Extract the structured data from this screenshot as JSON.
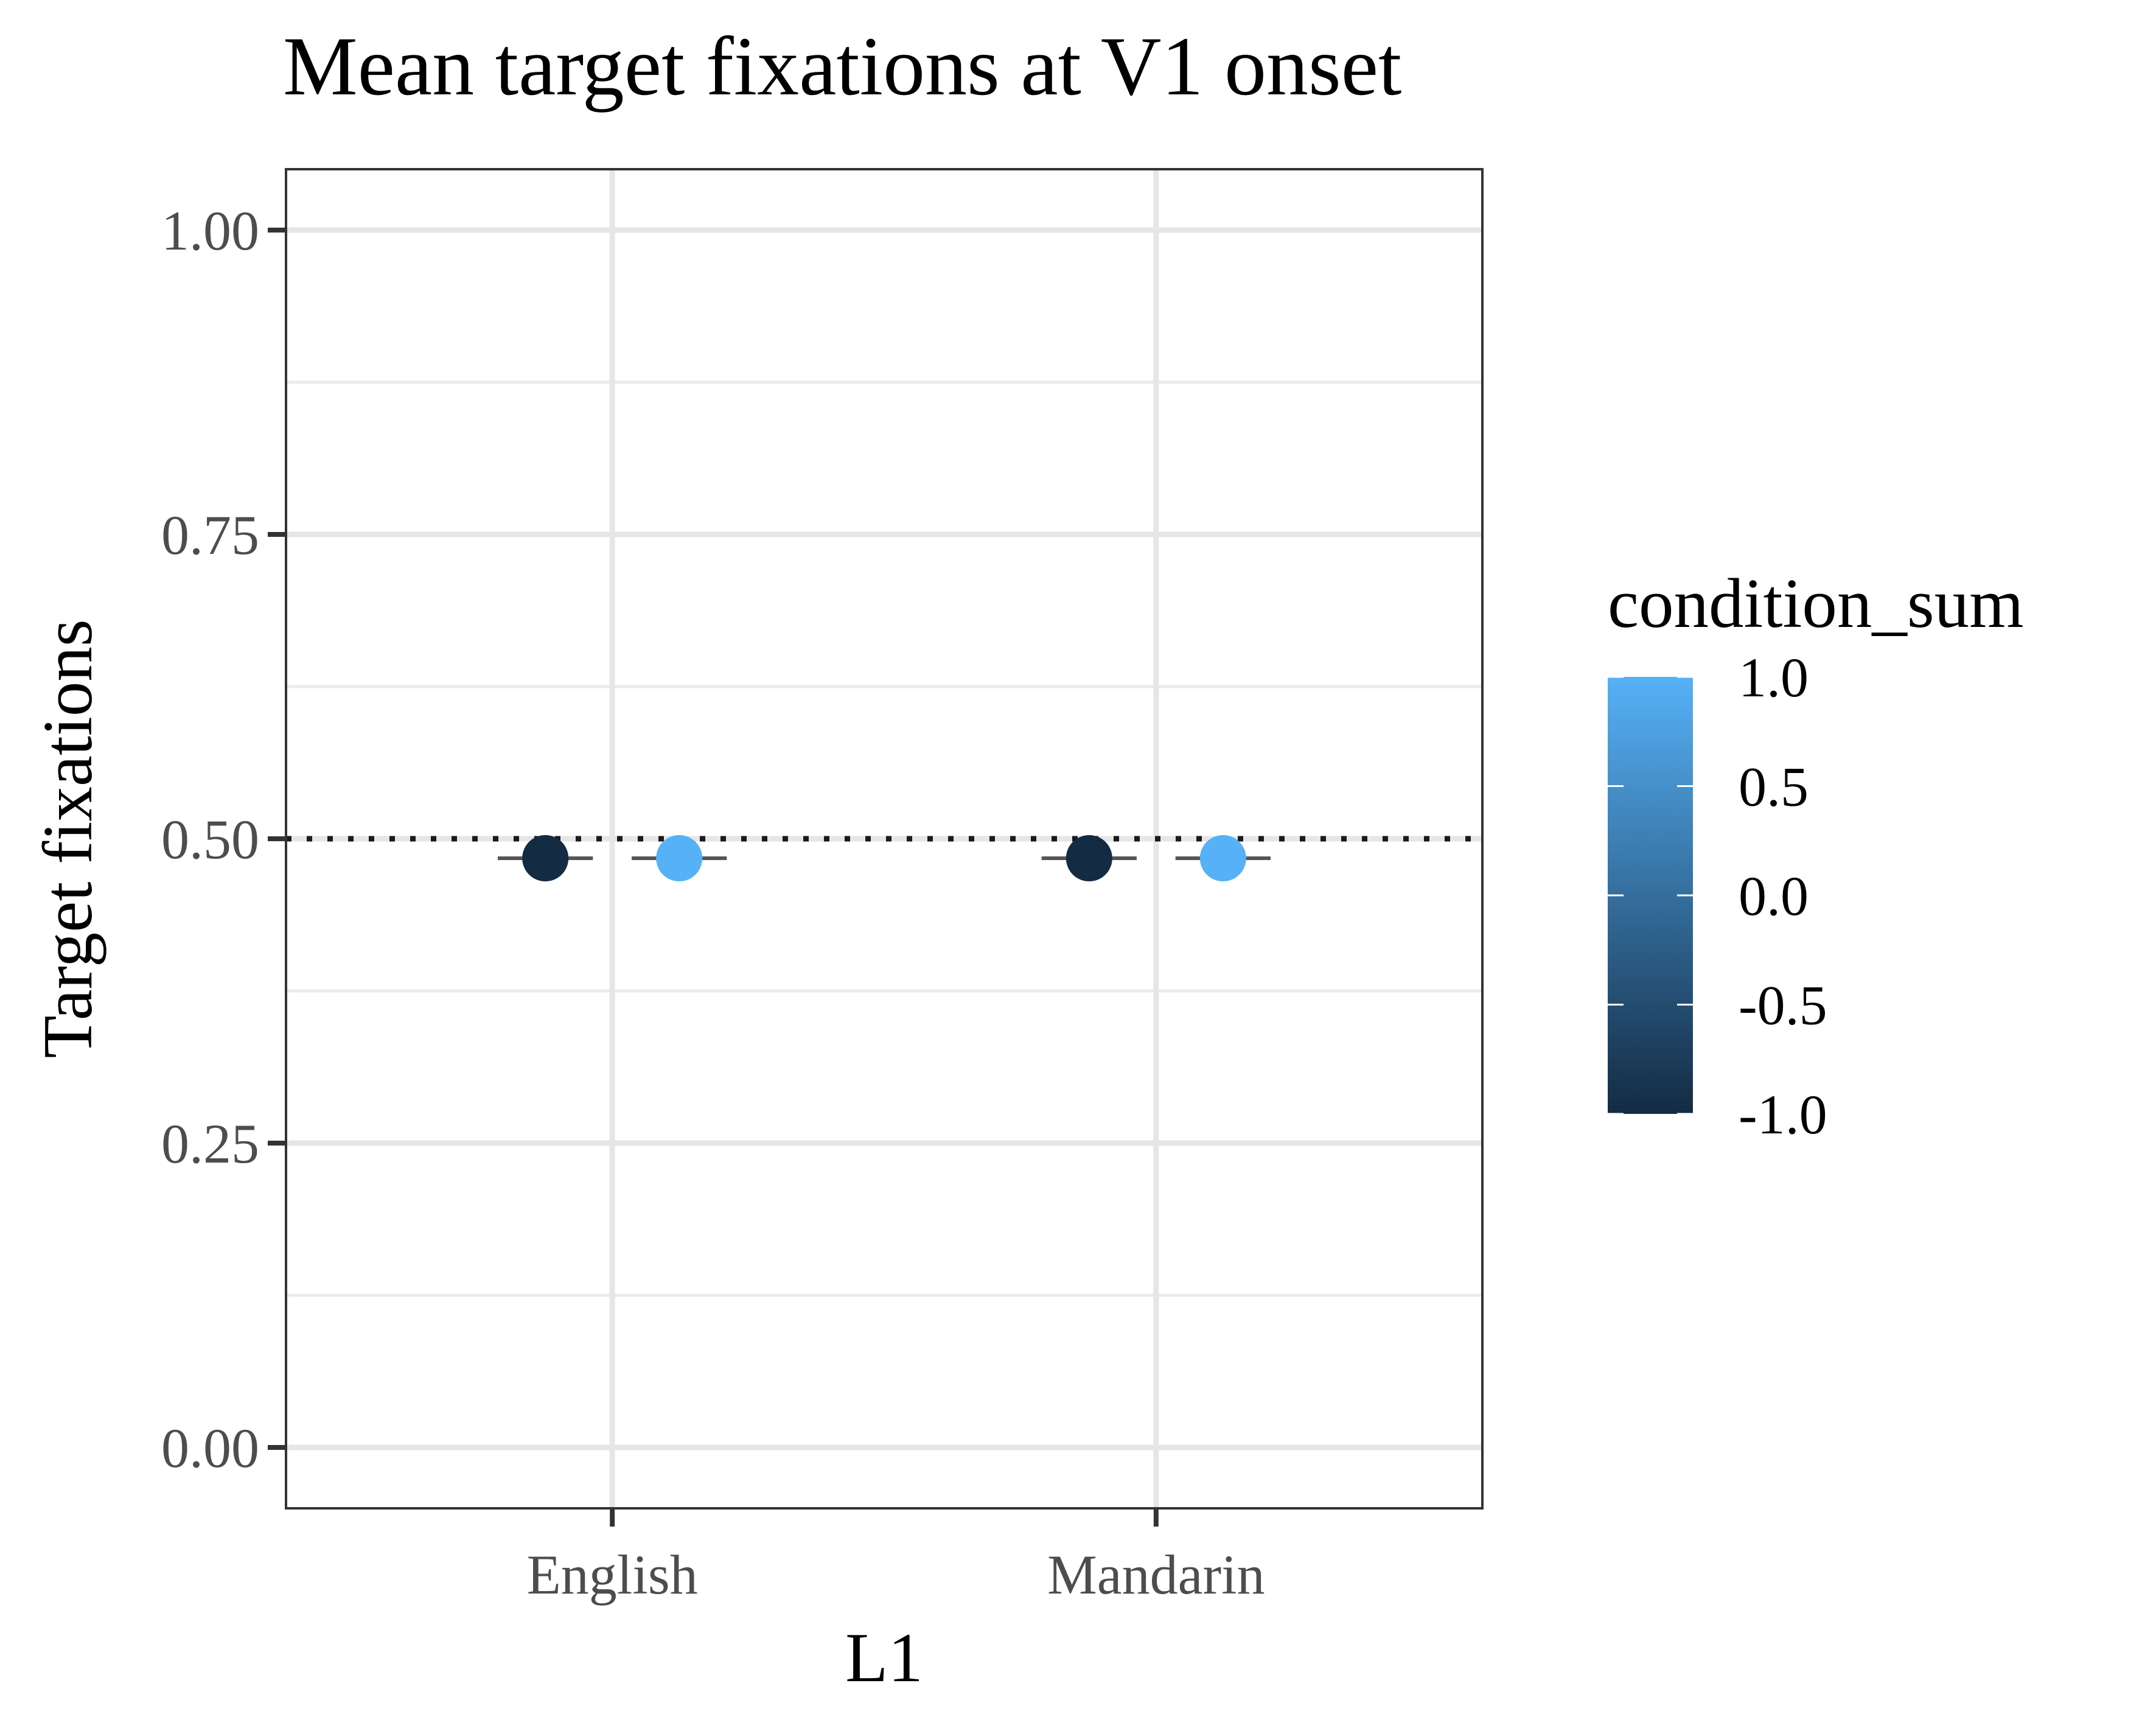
{
  "chart_data": {
    "type": "scatter",
    "title": "Mean target fixations at V1 onset",
    "xlabel": "L1",
    "ylabel": "Target fixations",
    "categories": [
      "English",
      "Mandarin"
    ],
    "ylim": [
      -0.05,
      1.05
    ],
    "yticks": [
      "0.00",
      "0.25",
      "0.50",
      "0.75",
      "1.00"
    ],
    "ytick_values": [
      0.0,
      0.25,
      0.5,
      0.75,
      1.0
    ],
    "reference_line": {
      "y": 0.5,
      "style": "dotted"
    },
    "series": [
      {
        "condition_sum": -1.0,
        "color": "#132B43",
        "values": [
          0.484,
          0.484
        ],
        "error_low": [
          0.484,
          0.484
        ],
        "error_high": [
          0.484,
          0.484
        ]
      },
      {
        "condition_sum": 1.0,
        "color": "#56B1F7",
        "values": [
          0.484,
          0.484
        ],
        "error_low": [
          0.484,
          0.484
        ],
        "error_high": [
          0.484,
          0.484
        ]
      }
    ],
    "legend": {
      "title": "condition_sum",
      "position": "right",
      "type": "colorbar",
      "labels": [
        "1.0",
        "0.5",
        "0.0",
        "-0.5",
        "-1.0"
      ],
      "values": [
        1.0,
        0.5,
        0.0,
        -0.5,
        -1.0
      ],
      "low_color": "#132B43",
      "high_color": "#56B1F7"
    },
    "grid": true
  }
}
